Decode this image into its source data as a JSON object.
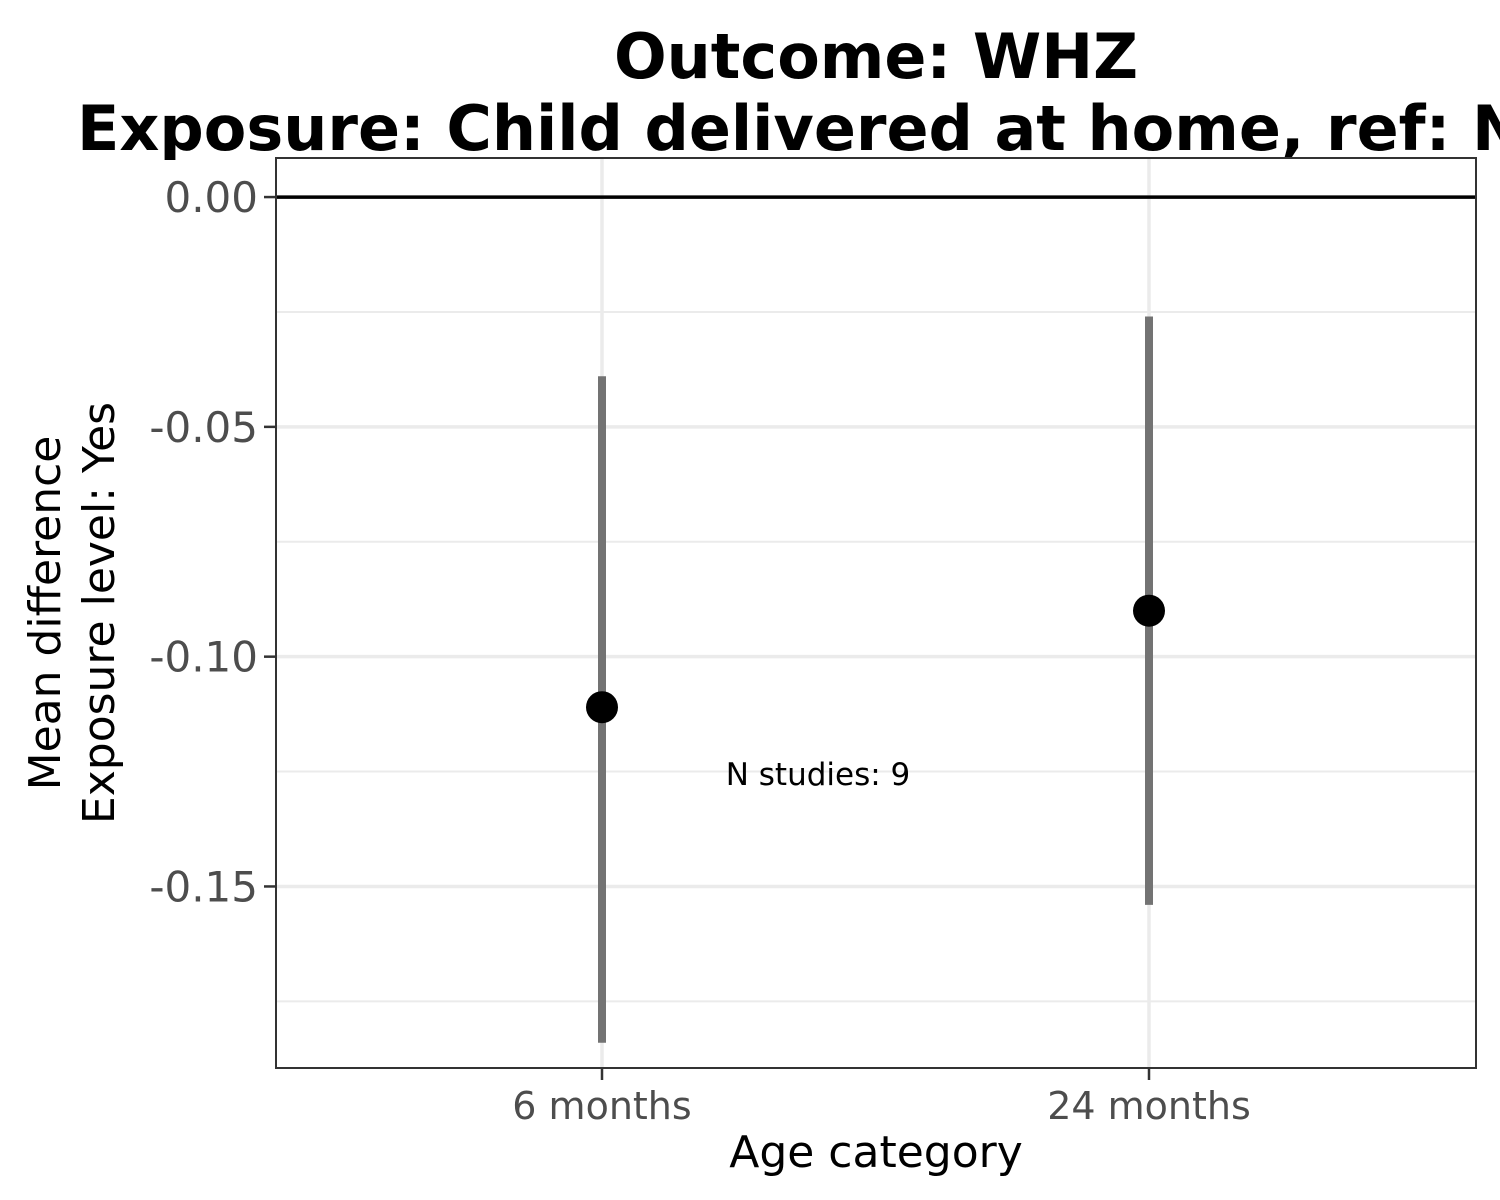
{
  "chart_data": {
    "type": "scatter",
    "title_line1": "Outcome: WHZ",
    "title_line2": "Exposure: Child delivered at home, ref: Not at home",
    "xlabel": "Age category",
    "ylabel_line1": "Mean difference",
    "ylabel_line2": "Exposure level: Yes",
    "categories": [
      "6 months",
      "24 months"
    ],
    "estimates": [
      -0.111,
      -0.09
    ],
    "ci_lower": [
      -0.184,
      -0.154
    ],
    "ci_upper": [
      -0.039,
      -0.026
    ],
    "yticks": [
      0.0,
      -0.05,
      -0.1,
      -0.15
    ],
    "ytick_labels": [
      "0.00",
      "-0.05",
      "-0.10",
      "-0.15"
    ],
    "ylim": [
      -0.1895,
      0.0085
    ],
    "reference_line": 0,
    "annotation": "N studies: 9",
    "grid": true,
    "colors": {
      "point": "#000000",
      "ci_line": "#737373",
      "reference": "#000000",
      "grid": "#ebebeb",
      "panel_border": "#333333"
    }
  }
}
